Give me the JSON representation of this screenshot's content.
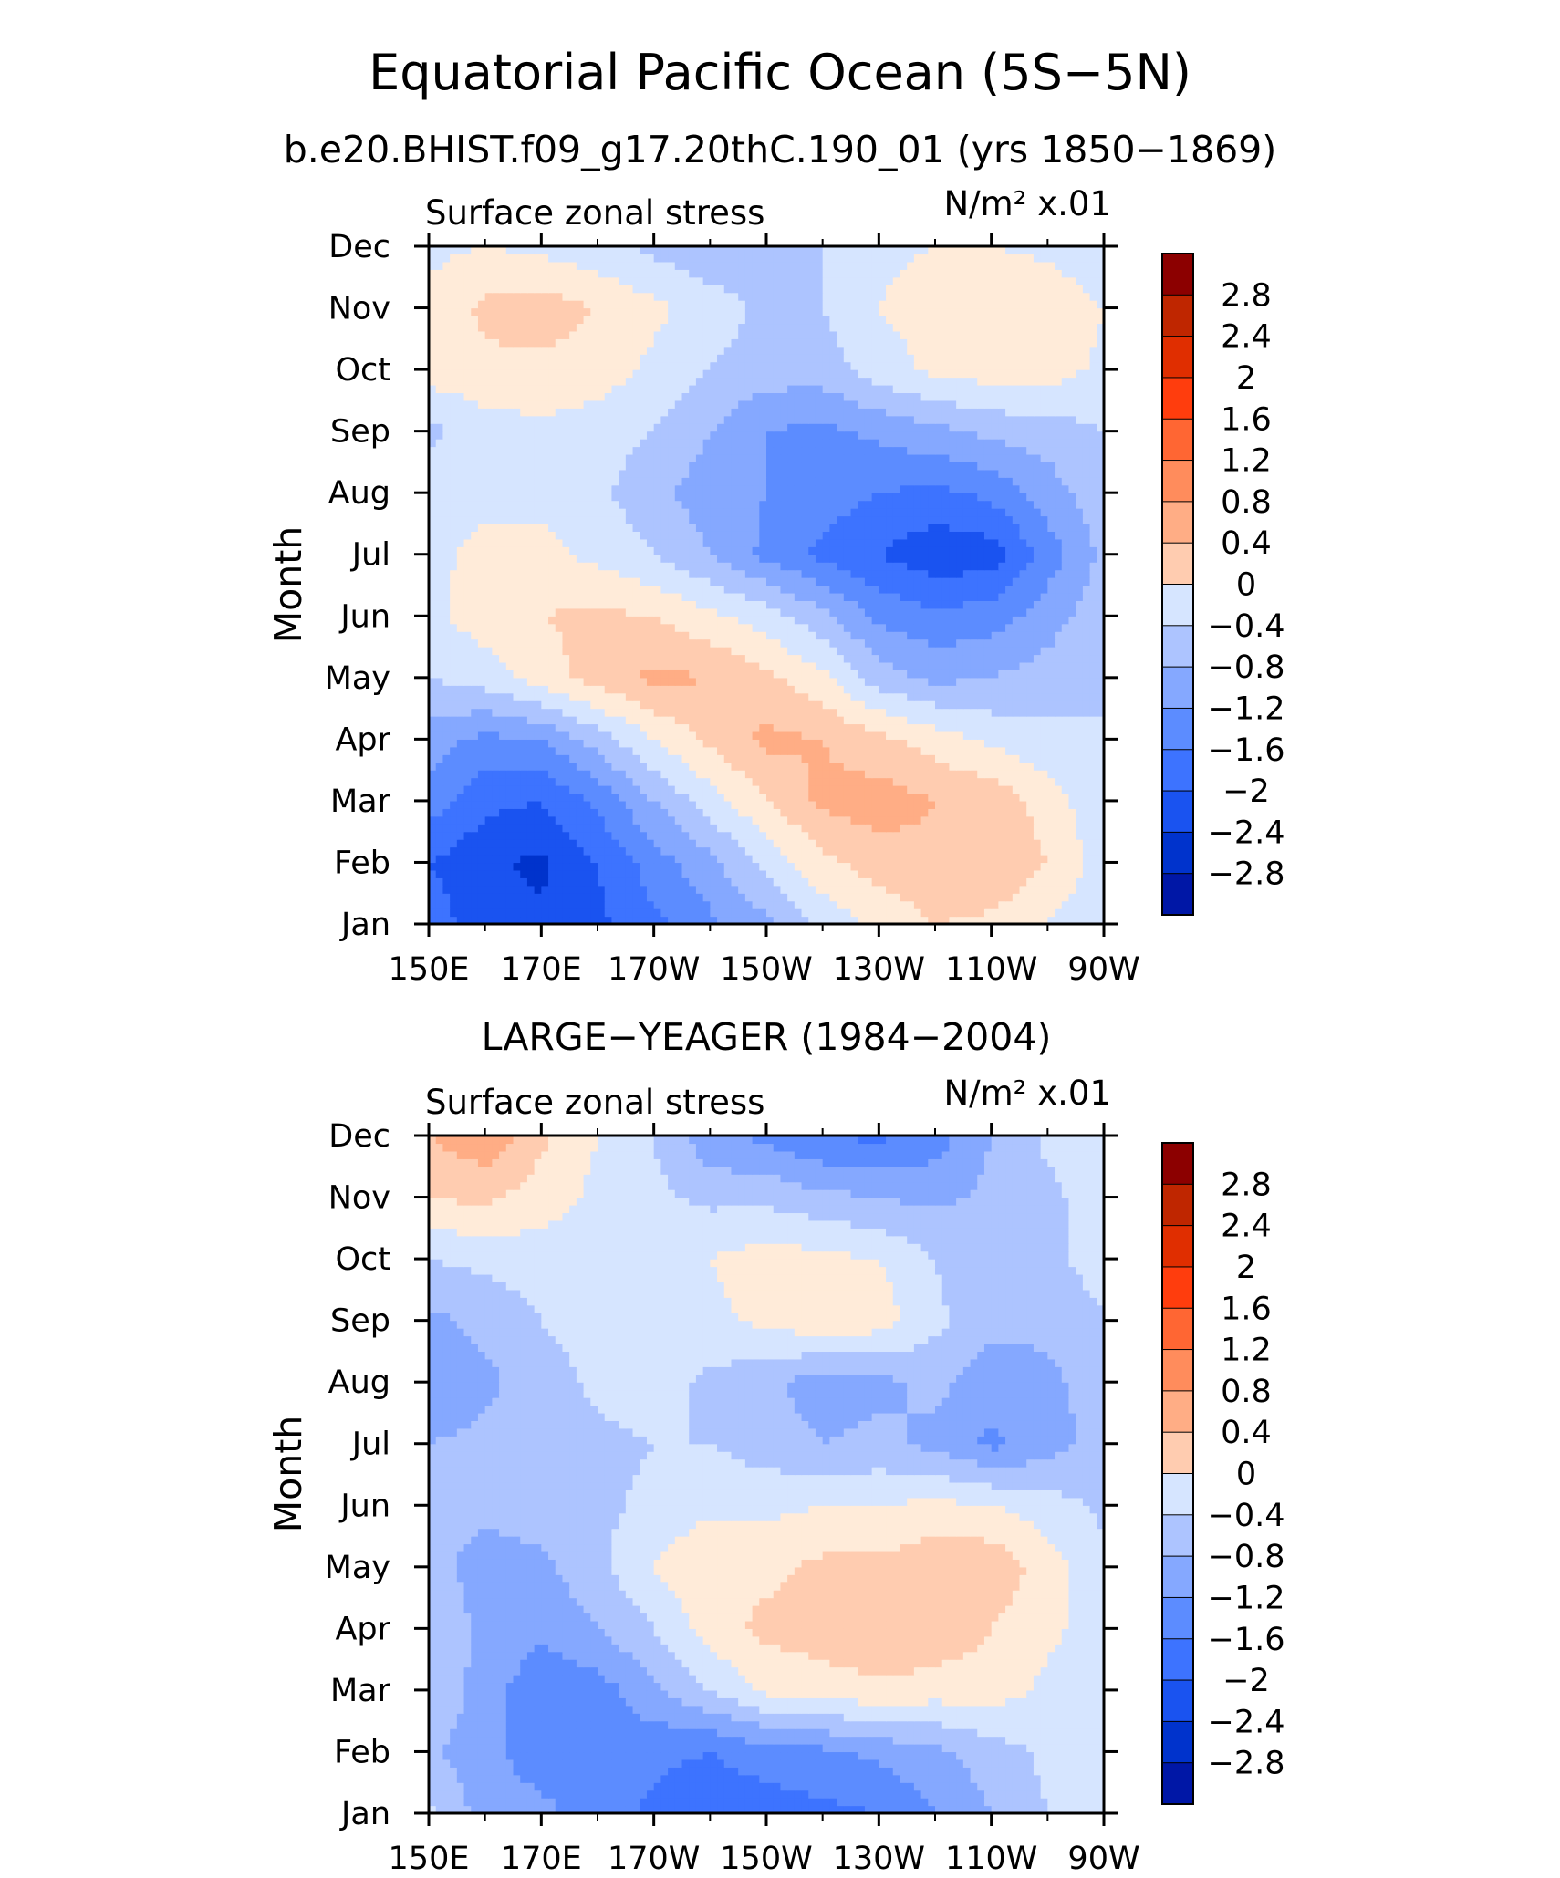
{
  "title": "Equatorial Pacific Ocean (5S−5N)",
  "colors": {
    "levels": [
      "#00008C",
      "#0017A6",
      "#0033CC",
      "#1A53F0",
      "#3D73FF",
      "#5C8CFF",
      "#85A8FF",
      "#ADC4FF",
      "#D6E5FF",
      "#FFEBD9",
      "#FFCCB0",
      "#FFAD85",
      "#FF8C5C",
      "#FF6633",
      "#FF3D0D",
      "#E02E00",
      "#BF2600",
      "#8C0000"
    ],
    "line": "#000000"
  },
  "chart_data": [
    {
      "type": "heatmap",
      "title": "b.e20.BHIST.f09_g17.20thC.190_01 (yrs 1850−1869)",
      "left_label": "Surface zonal stress",
      "right_label": "N/m² x.01",
      "xlabel": "",
      "ylabel": "Month",
      "x_ticks": [
        "150E",
        "170E",
        "170W",
        "150W",
        "130W",
        "110W",
        "90W"
      ],
      "y_ticks": [
        "Jan",
        "Feb",
        "Mar",
        "Apr",
        "May",
        "Jun",
        "Jul",
        "Aug",
        "Sep",
        "Oct",
        "Nov",
        "Dec"
      ],
      "colorbar_ticks": [
        "2.8",
        "2.4",
        "2",
        "1.6",
        "1.2",
        "0.8",
        "0.4",
        "0",
        "−0.4",
        "−0.8",
        "−1.2",
        "−1.6",
        "−2",
        "−2.4",
        "−2.8"
      ],
      "lon_values": [
        150,
        160,
        170,
        180,
        190,
        200,
        210,
        220,
        230,
        240,
        250,
        260,
        270
      ],
      "month_values": [
        "Jan",
        "Feb",
        "Mar",
        "Apr",
        "May",
        "Jun",
        "Jul",
        "Aug",
        "Sep",
        "Oct",
        "Nov",
        "Dec"
      ],
      "values": [
        [
          -1.4,
          -1.8,
          -1.9,
          -1.7,
          -1.3,
          -0.9,
          -0.5,
          0.1,
          0.5,
          0.8,
          0.7,
          0.4,
          0.0
        ],
        [
          -1.6,
          -1.9,
          -2.1,
          -1.6,
          -1.0,
          -0.5,
          0.1,
          0.7,
          1.0,
          1.1,
          1.2,
          0.8,
          0.2
        ],
        [
          -1.0,
          -1.5,
          -1.6,
          -1.1,
          -0.4,
          0.2,
          0.8,
          1.3,
          1.4,
          1.2,
          1.1,
          0.6,
          0.1
        ],
        [
          -0.6,
          -0.9,
          -0.8,
          -0.2,
          0.4,
          0.9,
          1.3,
          1.2,
          0.9,
          0.6,
          0.3,
          0.1,
          0.0
        ],
        [
          0.0,
          0.2,
          0.6,
          1.0,
          1.3,
          1.2,
          0.9,
          0.5,
          -0.2,
          -0.5,
          -0.4,
          -0.2,
          0.0
        ],
        [
          0.3,
          0.6,
          0.8,
          0.9,
          0.8,
          0.5,
          0.2,
          -0.3,
          -0.9,
          -1.1,
          -1.0,
          -0.6,
          -0.1
        ],
        [
          0.3,
          0.5,
          0.5,
          0.3,
          0.0,
          -0.4,
          -0.9,
          -1.3,
          -1.6,
          -1.9,
          -1.8,
          -1.0,
          -0.3
        ],
        [
          0.2,
          0.3,
          0.3,
          0.1,
          -0.3,
          -0.6,
          -0.8,
          -1.0,
          -1.2,
          -1.3,
          -1.1,
          -0.6,
          -0.1
        ],
        [
          -0.1,
          0.2,
          0.3,
          0.2,
          0.0,
          -0.4,
          -0.8,
          -0.9,
          -0.7,
          -0.5,
          -0.3,
          -0.2,
          0.0
        ],
        [
          0.6,
          0.7,
          0.7,
          0.6,
          0.3,
          0.0,
          -0.2,
          -0.2,
          0.2,
          0.5,
          0.6,
          0.6,
          0.3
        ],
        [
          0.5,
          0.9,
          1.0,
          0.8,
          0.5,
          0.2,
          -0.1,
          0.0,
          0.4,
          0.6,
          0.7,
          0.7,
          0.4
        ],
        [
          0.3,
          0.4,
          0.3,
          0.1,
          -0.1,
          -0.3,
          -0.2,
          0.0,
          0.3,
          0.4,
          0.4,
          0.3,
          0.1
        ]
      ]
    },
    {
      "type": "heatmap",
      "title": "LARGE−YEAGER (1984−2004)",
      "left_label": "Surface zonal stress",
      "right_label": "N/m² x.01",
      "xlabel": "",
      "ylabel": "Month",
      "x_ticks": [
        "150E",
        "170E",
        "170W",
        "150W",
        "130W",
        "110W",
        "90W"
      ],
      "y_ticks": [
        "Jan",
        "Feb",
        "Mar",
        "Apr",
        "May",
        "Jun",
        "Jul",
        "Aug",
        "Sep",
        "Oct",
        "Nov",
        "Dec"
      ],
      "colorbar_ticks": [
        "2.8",
        "2.4",
        "2",
        "1.6",
        "1.2",
        "0.8",
        "0.4",
        "0",
        "−0.4",
        "−0.8",
        "−1.2",
        "−1.6",
        "−2",
        "−2.4",
        "−2.8"
      ],
      "lon_values": [
        150,
        160,
        170,
        180,
        190,
        200,
        210,
        220,
        230,
        240,
        250,
        260,
        270
      ],
      "month_values": [
        "Jan",
        "Feb",
        "Mar",
        "Apr",
        "May",
        "Jun",
        "Jul",
        "Aug",
        "Sep",
        "Oct",
        "Nov",
        "Dec"
      ],
      "values": [
        [
          0.1,
          -0.6,
          -0.7,
          -1.0,
          -1.3,
          -1.5,
          -1.4,
          -1.3,
          -1.2,
          -0.8,
          -0.4,
          0.0,
          0.1
        ],
        [
          -0.3,
          -0.7,
          -1.0,
          -0.9,
          -1.1,
          -1.2,
          -1.0,
          -0.9,
          -0.7,
          -0.5,
          -0.2,
          0.1,
          0.1
        ],
        [
          0.0,
          -0.6,
          -1.1,
          -1.0,
          -0.5,
          0.0,
          0.5,
          0.6,
          0.7,
          0.6,
          0.6,
          0.3,
          0.2
        ],
        [
          -0.1,
          -0.5,
          -0.7,
          -0.4,
          0.0,
          0.6,
          0.9,
          1.0,
          1.2,
          1.1,
          0.8,
          0.5,
          0.2
        ],
        [
          -0.2,
          -0.6,
          -0.5,
          -0.1,
          0.4,
          0.8,
          0.7,
          0.9,
          0.9,
          1.1,
          1.1,
          0.6,
          0.1
        ],
        [
          -0.3,
          -0.3,
          -0.2,
          -0.1,
          0.1,
          0.3,
          0.3,
          0.4,
          0.4,
          0.5,
          0.4,
          0.2,
          -0.1
        ],
        [
          -0.4,
          -0.3,
          -0.2,
          -0.1,
          0.0,
          0.0,
          -0.2,
          -0.4,
          -0.3,
          -0.5,
          -0.9,
          -0.6,
          -0.2
        ],
        [
          -0.7,
          -0.5,
          -0.2,
          0.1,
          0.2,
          -0.1,
          -0.3,
          -0.6,
          -0.5,
          -0.3,
          -0.6,
          -0.5,
          -0.2
        ],
        [
          -0.5,
          -0.3,
          0.0,
          0.2,
          0.2,
          0.3,
          0.5,
          0.7,
          0.6,
          0.1,
          -0.3,
          -0.3,
          -0.1
        ],
        [
          0.0,
          0.1,
          0.2,
          0.2,
          0.2,
          0.4,
          0.6,
          0.5,
          0.4,
          0.0,
          -0.3,
          -0.2,
          0.3
        ],
        [
          0.8,
          0.9,
          0.6,
          0.3,
          0.1,
          -0.1,
          -0.1,
          -0.3,
          -0.4,
          -0.5,
          -0.3,
          -0.1,
          0.2
        ],
        [
          1.2,
          1.5,
          0.9,
          0.4,
          0.0,
          -0.7,
          -0.9,
          -1.2,
          -1.3,
          -1.0,
          -0.4,
          0.1,
          0.1
        ]
      ]
    }
  ]
}
